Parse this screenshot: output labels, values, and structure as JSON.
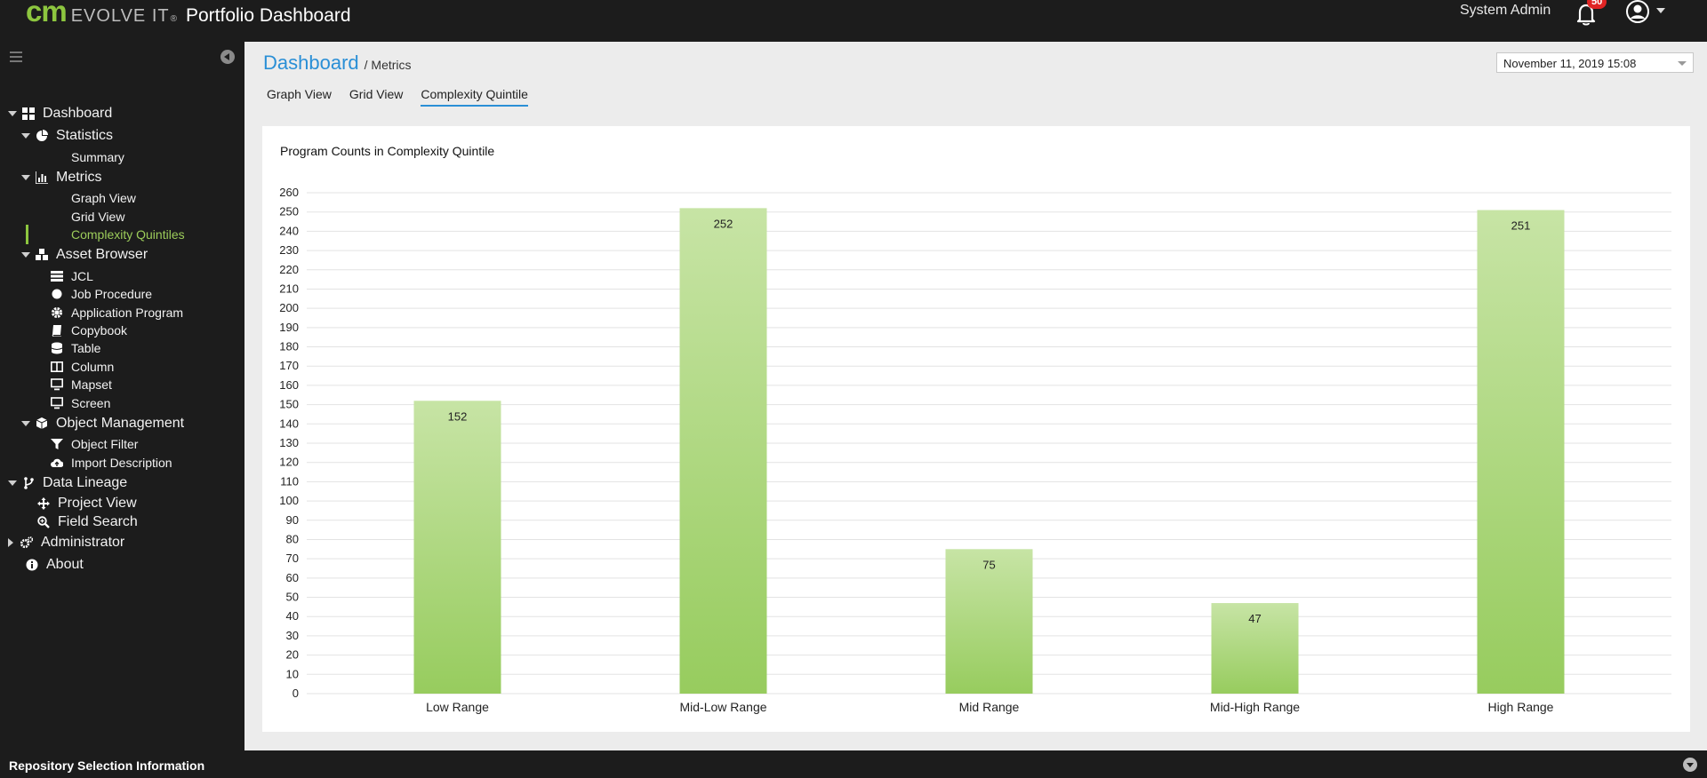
{
  "header": {
    "brand_cm": "CM",
    "brand_evolve": "EVOLVE IT",
    "brand_reg": "®",
    "app_title": "Portfolio Dashboard",
    "user_name": "System Admin",
    "notification_count": "50"
  },
  "sidebar": {
    "items": [
      {
        "label": "Dashboard",
        "icon": "dashboard-icon",
        "level": 0,
        "caret": "down"
      },
      {
        "label": "Statistics",
        "icon": "pie-chart-icon",
        "level": 1,
        "caret": "down"
      },
      {
        "label": "Summary",
        "icon": "",
        "level": 2
      },
      {
        "label": "Metrics",
        "icon": "bar-chart-icon",
        "level": 1,
        "caret": "down"
      },
      {
        "label": "Graph View",
        "icon": "",
        "level": 2
      },
      {
        "label": "Grid View",
        "icon": "",
        "level": 2
      },
      {
        "label": "Complexity Quintiles",
        "icon": "",
        "level": 2,
        "active": true
      },
      {
        "label": "Asset Browser",
        "icon": "cubes-icon",
        "level": 1,
        "caret": "down"
      },
      {
        "label": "JCL",
        "icon": "server-icon",
        "level": 2
      },
      {
        "label": "Job Procedure",
        "icon": "circle-icon",
        "level": 2
      },
      {
        "label": "Application Program",
        "icon": "gear-icon",
        "level": 2
      },
      {
        "label": "Copybook",
        "icon": "book-icon",
        "level": 2
      },
      {
        "label": "Table",
        "icon": "database-icon",
        "level": 2
      },
      {
        "label": "Column",
        "icon": "columns-icon",
        "level": 2
      },
      {
        "label": "Mapset",
        "icon": "desktop-icon",
        "level": 2
      },
      {
        "label": "Screen",
        "icon": "monitor-icon",
        "level": 2
      },
      {
        "label": "Object Management",
        "icon": "cube-icon",
        "level": 1,
        "caret": "down"
      },
      {
        "label": "Object Filter",
        "icon": "filter-icon",
        "level": 2
      },
      {
        "label": "Import Description",
        "icon": "cloud-upload-icon",
        "level": 2
      },
      {
        "label": "Data Lineage",
        "icon": "branch-icon",
        "level": 0,
        "caret": "down"
      },
      {
        "label": "Project View",
        "icon": "move-icon",
        "level": 1
      },
      {
        "label": "Field Search",
        "icon": "search-plus-icon",
        "level": 1
      },
      {
        "label": "Administrator",
        "icon": "gears-icon",
        "level": 0,
        "caret": "right"
      },
      {
        "label": "About",
        "icon": "info-icon",
        "level": 0
      }
    ]
  },
  "breadcrumb": {
    "main": "Dashboard",
    "sub": "/ Metrics"
  },
  "datepicker": {
    "value": "November 11, 2019 15:08"
  },
  "tabs": [
    {
      "label": "Graph View",
      "active": false
    },
    {
      "label": "Grid View",
      "active": false
    },
    {
      "label": "Complexity Quintile",
      "active": true
    }
  ],
  "chart_data": {
    "type": "bar",
    "title": "Program Counts in Complexity Quintile",
    "categories": [
      "Low Range",
      "Mid-Low Range",
      "Mid Range",
      "Mid-High Range",
      "High Range"
    ],
    "values": [
      152,
      252,
      75,
      47,
      251
    ],
    "ylim": [
      0,
      260
    ],
    "ytick_step": 10,
    "grid": true,
    "legend": "none",
    "bar_color_top": "#c7e4a5",
    "bar_color_bottom": "#97cc5e"
  },
  "footer": {
    "label": "Repository Selection Information"
  }
}
